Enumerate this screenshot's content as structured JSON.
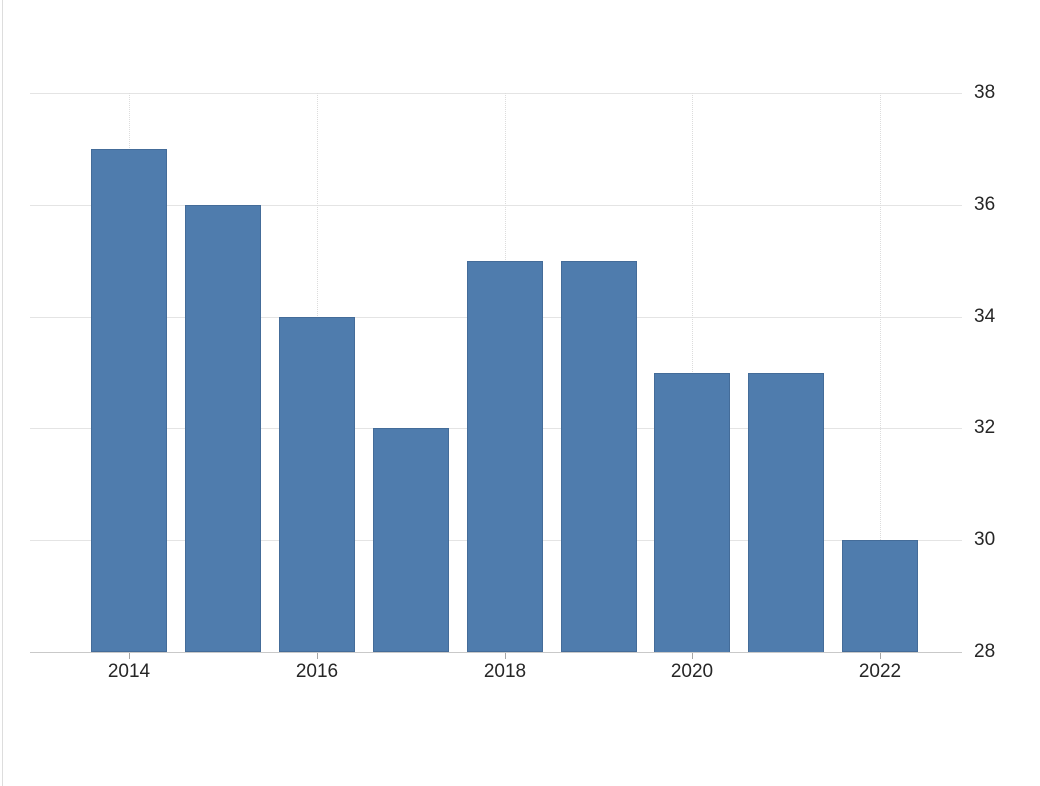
{
  "page": {
    "background": "#ffffff",
    "left_border_color": "#dddddd"
  },
  "chart_data": {
    "type": "bar",
    "categories": [
      "2014",
      "2015",
      "2016",
      "2017",
      "2018",
      "2019",
      "2020",
      "2021",
      "2022"
    ],
    "values": [
      37,
      36,
      34,
      32,
      35,
      35,
      33,
      33,
      30
    ],
    "title": "",
    "xlabel": "",
    "ylabel": "",
    "ylim": [
      28,
      38
    ],
    "y_ticks": [
      28,
      30,
      32,
      34,
      36,
      38
    ],
    "x_tick_labels": [
      "2014",
      "2016",
      "2018",
      "2020",
      "2022"
    ],
    "grid": true,
    "legend": false,
    "legend_position": "none",
    "colors": {
      "bar_fill": "#4f7cad",
      "bar_border": "#446c99",
      "h_gridline": "#e4e4e4",
      "v_gridline": "#dcdcdc",
      "axis_line": "#c9c9c9",
      "tick_mark": "#a6a6a6",
      "label_text": "#262626"
    }
  }
}
